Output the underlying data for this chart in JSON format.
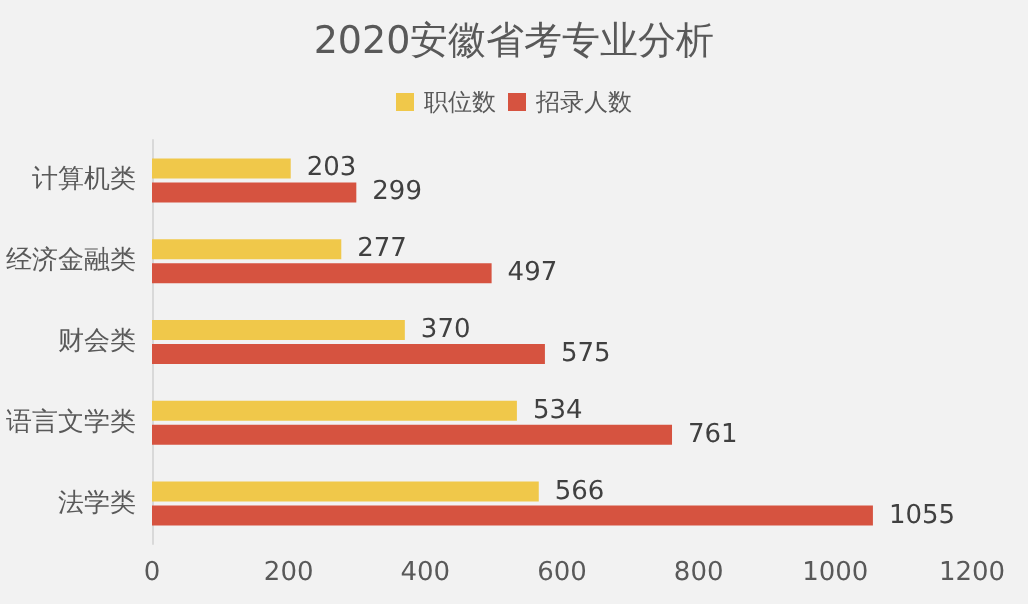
{
  "chart_data": {
    "type": "bar",
    "orientation": "horizontal",
    "title": "2020安徽省考专业分析",
    "categories": [
      "计算机类",
      "经济金融类",
      "财会类",
      "语言文学类",
      "法学类"
    ],
    "series": [
      {
        "name": "职位数",
        "color": "#f0c84a",
        "values": [
          203,
          277,
          370,
          534,
          566
        ]
      },
      {
        "name": "招录人数",
        "color": "#d65340",
        "values": [
          299,
          497,
          575,
          761,
          1055
        ]
      }
    ],
    "xlim": [
      0,
      1200
    ],
    "xticks": [
      0,
      200,
      400,
      600,
      800,
      1000,
      1200
    ],
    "grid": false,
    "legend": "top",
    "data_labels": true
  }
}
